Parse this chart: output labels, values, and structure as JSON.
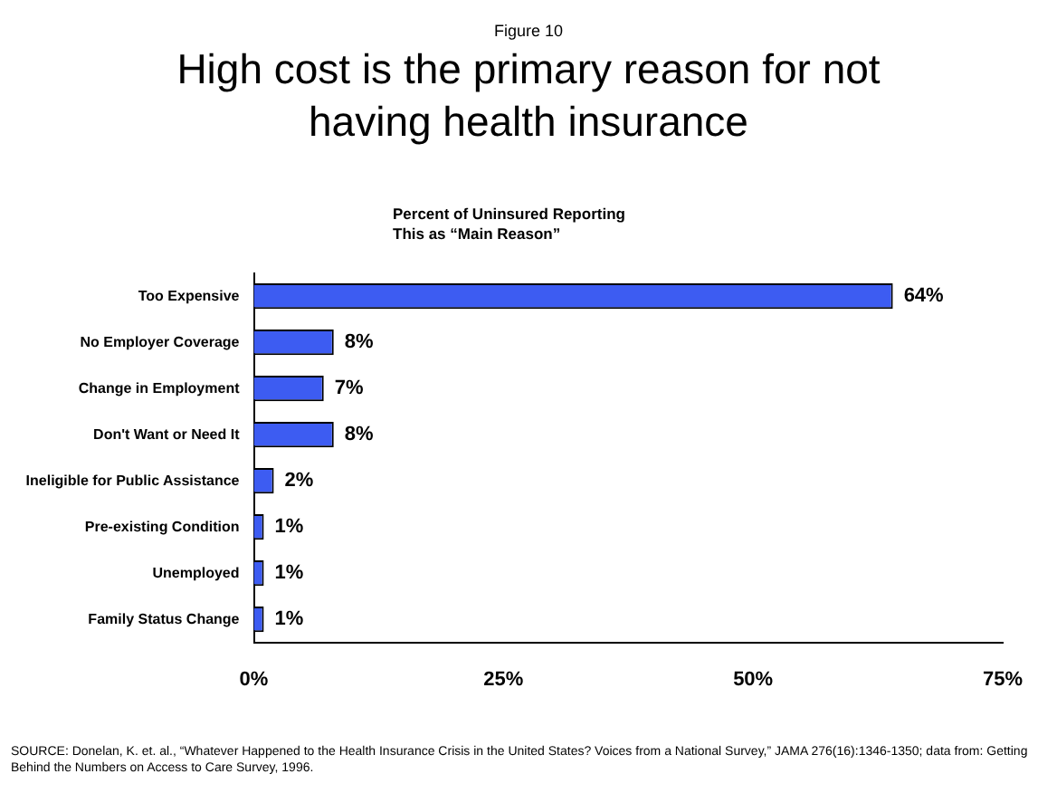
{
  "chart_data": {
    "type": "bar",
    "orientation": "horizontal",
    "title": "High cost is the primary reason for not having health insurance",
    "xlabel": "Percent of Uninsured Reporting\nThis as “Main Reason”",
    "categories": [
      "Too Expensive",
      "No Employer Coverage",
      "Change in Employment",
      "Don't Want or Need It",
      "Ineligible for Public Assistance",
      "Pre-existing Condition",
      "Unemployed",
      "Family Status Change"
    ],
    "values": [
      64,
      8,
      7,
      8,
      2,
      1,
      1,
      1
    ],
    "color": "#3d5cf2",
    "value_labels": [
      "64%",
      "8%",
      "7%",
      "8%",
      "2%",
      "1%",
      "1%",
      "1%"
    ],
    "xlim": [
      0,
      75
    ],
    "xticks": [
      {
        "value": 0,
        "label": "0%"
      },
      {
        "value": 25,
        "label": "25%"
      },
      {
        "value": 50,
        "label": "50%"
      },
      {
        "value": 75,
        "label": "75%"
      }
    ],
    "grid": false,
    "legend": false,
    "annotations": [
      "Figure 10",
      "SOURCE: Donelan, K. et. al., “Whatever Happened to the Health Insurance Crisis in the United States?  Voices from a National Survey,” JAMA 276(16):1346-1350; data from: Getting Behind the Numbers on Access to Care Survey, 1996."
    ]
  }
}
